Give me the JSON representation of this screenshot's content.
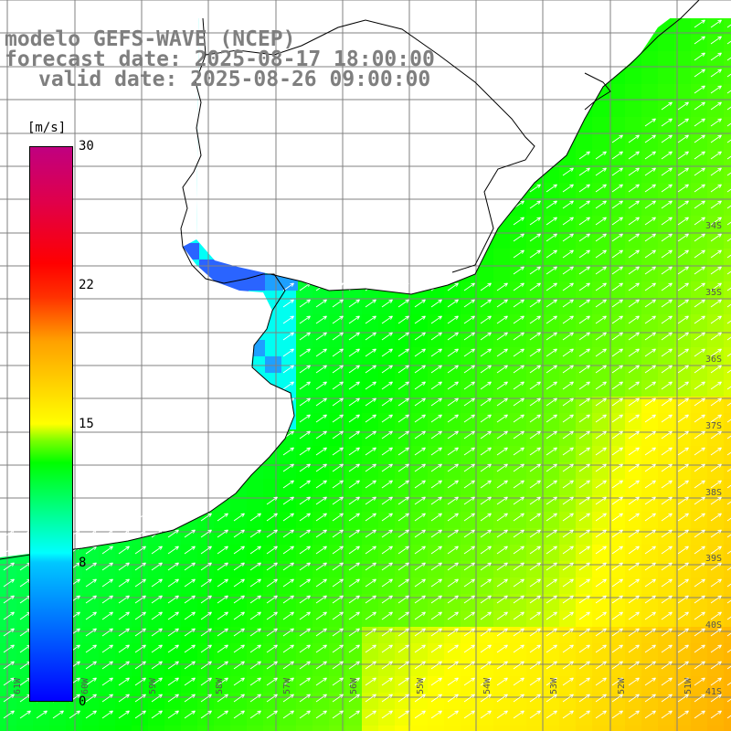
{
  "title": {
    "model": "modelo GEFS-WAVE (NCEP)",
    "forecast": "forecast date: 2025-08-17 18:00:00",
    "valid": "valid date: 2025-08-26 09:00:00"
  },
  "colorbar": {
    "unit": "[m/s]",
    "ticks": [
      "30",
      "22",
      "15",
      "8",
      "0"
    ],
    "tick_values": [
      30,
      22,
      15,
      8,
      0
    ],
    "range": [
      0,
      30
    ]
  },
  "lat_labels": [
    "34S",
    "35S",
    "36S",
    "37S",
    "38S",
    "39S",
    "40S",
    "41S"
  ],
  "lon_labels": [
    "61W",
    "60W",
    "59W",
    "58W",
    "57W",
    "56W",
    "55W",
    "54W",
    "53W",
    "52W",
    "51W"
  ],
  "colors": {
    "land": "#ffffff",
    "grid": "#808080",
    "coast": "#000000",
    "arrow": "#ffffff"
  }
}
